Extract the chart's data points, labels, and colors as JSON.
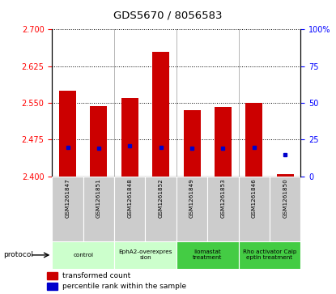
{
  "title": "GDS5670 / 8056583",
  "samples": [
    "GSM1261847",
    "GSM1261851",
    "GSM1261848",
    "GSM1261852",
    "GSM1261849",
    "GSM1261853",
    "GSM1261846",
    "GSM1261850"
  ],
  "bar_values": [
    2.575,
    2.543,
    2.56,
    2.655,
    2.535,
    2.542,
    2.55,
    2.405
  ],
  "bar_bottom": 2.4,
  "percentile_values": [
    20,
    19,
    21,
    20,
    19,
    19,
    20,
    15
  ],
  "ylim_left": [
    2.4,
    2.7
  ],
  "ylim_right": [
    0,
    100
  ],
  "yticks_left": [
    2.4,
    2.475,
    2.55,
    2.625,
    2.7
  ],
  "yticks_right": [
    0,
    25,
    50,
    75,
    100
  ],
  "bar_color": "#cc0000",
  "dot_color": "#0000cc",
  "bar_width": 0.55,
  "protocols": [
    {
      "label": "control",
      "start": 0,
      "end": 2,
      "color": "#ccffcc"
    },
    {
      "label": "EphA2-overexpres\nsion",
      "start": 2,
      "end": 4,
      "color": "#ccffcc"
    },
    {
      "label": "Ilomastat\ntreatment",
      "start": 4,
      "end": 6,
      "color": "#44cc44"
    },
    {
      "label": "Rho activator Calp\neptin treatment",
      "start": 6,
      "end": 8,
      "color": "#44cc44"
    }
  ],
  "legend_items": [
    {
      "color": "#cc0000",
      "label": "transformed count"
    },
    {
      "color": "#0000cc",
      "label": "percentile rank within the sample"
    }
  ],
  "sample_bg": "#cccccc",
  "chart_bg": "#ffffff"
}
